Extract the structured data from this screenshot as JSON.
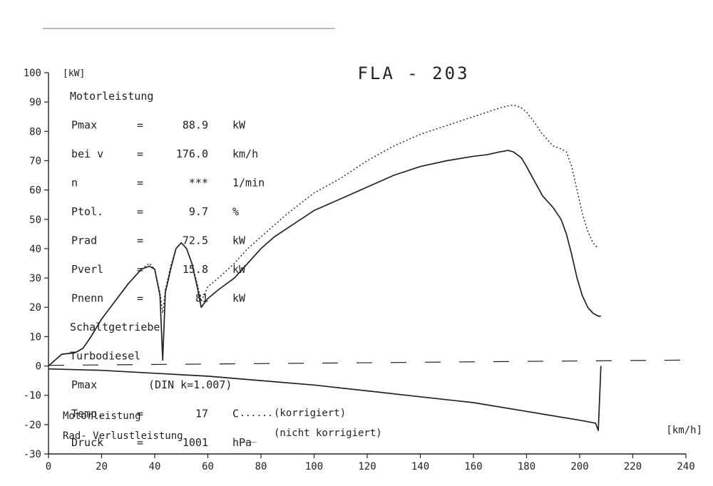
{
  "chart_data": {
    "type": "line",
    "title": "FLA - 203",
    "ylabel": "[kW]",
    "xlabel": "[km/h]",
    "xlim": [
      0,
      240
    ],
    "ylim": [
      -30,
      100
    ],
    "x_ticks": [
      0,
      20,
      40,
      60,
      80,
      100,
      120,
      140,
      160,
      180,
      200,
      220,
      240
    ],
    "y_ticks": [
      -30,
      -20,
      -10,
      0,
      10,
      20,
      30,
      40,
      50,
      60,
      70,
      80,
      90,
      100
    ],
    "info_block": [
      {
        "label": "Motorleistung",
        "eq": "",
        "value": "",
        "unit": ""
      },
      {
        "label": "Pmax",
        "eq": "=",
        "value": "88.9",
        "unit": "kW"
      },
      {
        "label": "bei v",
        "eq": "=",
        "value": "176.0",
        "unit": "km/h"
      },
      {
        "label": "n",
        "eq": "=",
        "value": "***",
        "unit": "1/min"
      },
      {
        "label": "Ptol.",
        "eq": "=",
        "value": "9.7",
        "unit": "%"
      },
      {
        "label": "Prad",
        "eq": "=",
        "value": "72.5",
        "unit": "kW"
      },
      {
        "label": "Pverl",
        "eq": "=",
        "value": "15.8",
        "unit": "kW"
      },
      {
        "label": "Pnenn",
        "eq": "=",
        "value": "81",
        "unit": "kW"
      },
      {
        "label": "Schaltgetriebe",
        "eq": "",
        "value": "",
        "unit": ""
      },
      {
        "label": "Turbodiesel",
        "eq": "",
        "value": "",
        "unit": ""
      },
      {
        "label": "Pmax",
        "eq": "",
        "value": "(DIN k=1.007)",
        "unit": ""
      },
      {
        "label": "Temp.",
        "eq": "=",
        "value": "17",
        "unit": "C"
      },
      {
        "label": "Druck",
        "eq": "=",
        "value": "1001",
        "unit": "hPa"
      }
    ],
    "legend": [
      {
        "name": "Motorleistung",
        "sample": "......",
        "note": "(korrigiert)"
      },
      {
        "name": "Rad- Verlustleistung",
        "sample": "___",
        "note": "(nicht korrigiert)"
      }
    ],
    "series": [
      {
        "name": "Motorleistung (korrigiert)",
        "style": "dotted",
        "x": [
          0,
          5,
          10,
          13,
          16,
          20,
          25,
          30,
          35,
          38,
          40,
          42,
          43,
          44,
          46,
          48,
          50,
          52,
          54,
          56,
          57.5,
          60,
          64,
          70,
          75,
          80,
          85,
          90,
          100,
          110,
          120,
          130,
          140,
          150,
          160,
          165,
          170,
          174,
          176,
          178,
          180,
          183,
          186,
          190,
          193,
          195,
          197,
          199,
          201,
          203,
          205,
          207
        ],
        "y": [
          0,
          4,
          4.5,
          6,
          10,
          16,
          22,
          28,
          33,
          35,
          33,
          25,
          18,
          26,
          34,
          40,
          42,
          40,
          35,
          28,
          22,
          27,
          30,
          35,
          40,
          44,
          48,
          52,
          59,
          64,
          70,
          75,
          79,
          82,
          85,
          86.5,
          88,
          88.9,
          88.8,
          88,
          86.5,
          83,
          79,
          75,
          74,
          73,
          68,
          60,
          52,
          46,
          42,
          40
        ]
      },
      {
        "name": "Motorleistung",
        "style": "solid",
        "x": [
          0,
          5,
          10,
          13,
          16,
          20,
          25,
          30,
          35,
          38,
          40,
          42,
          43,
          44,
          46,
          48,
          50,
          52,
          54,
          56,
          57.5,
          60,
          64,
          70,
          75,
          80,
          85,
          90,
          100,
          110,
          120,
          130,
          140,
          150,
          160,
          165,
          170,
          173,
          175,
          178,
          180,
          183,
          186,
          190,
          193,
          195,
          197,
          199,
          201,
          203,
          205,
          207,
          208
        ],
        "y": [
          0,
          4,
          4.5,
          6,
          10,
          16,
          22,
          28,
          33,
          34,
          33,
          24,
          2,
          25,
          33,
          40,
          42,
          40,
          35,
          27,
          20,
          23,
          26,
          30,
          35,
          40,
          44,
          47,
          53,
          57,
          61,
          65,
          68,
          70,
          71.5,
          72,
          73,
          73.5,
          73,
          71,
          68,
          63,
          58,
          54,
          50,
          45,
          38,
          30,
          24,
          20,
          18,
          17,
          17
        ]
      },
      {
        "name": "Rad- Verlustleistung",
        "style": "solid",
        "x": [
          0,
          20,
          40,
          60,
          80,
          100,
          120,
          140,
          160,
          180,
          200,
          206,
          207,
          208
        ],
        "y": [
          -1,
          -1.5,
          -2.5,
          -3.5,
          -5,
          -6.5,
          -8.5,
          -10.5,
          -12.5,
          -15.5,
          -18.5,
          -19.5,
          -22,
          0
        ]
      },
      {
        "name": "Nulllinie",
        "style": "dashed",
        "x": [
          0,
          240
        ],
        "y": [
          0.2,
          2
        ]
      }
    ]
  }
}
